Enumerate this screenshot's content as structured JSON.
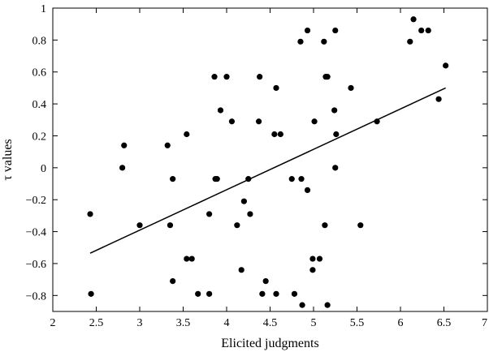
{
  "chart_data": {
    "type": "scatter",
    "xlabel": "Elicited judgments",
    "ylabel": "τ values",
    "xlim": [
      2,
      7
    ],
    "ylim": [
      -0.9,
      1
    ],
    "xticks": [
      2,
      2.5,
      3,
      3.5,
      4,
      4.5,
      5,
      5.5,
      6,
      6.5,
      7
    ],
    "xtick_labels": [
      "2",
      "2.5",
      "3",
      "3.5",
      "4",
      "4.5",
      "5",
      "5.5",
      "6",
      "6.5",
      "7"
    ],
    "yticks": [
      -0.8,
      -0.6,
      -0.4,
      -0.2,
      0,
      0.2,
      0.4,
      0.6,
      0.8,
      1
    ],
    "ytick_labels": [
      "−0.8",
      "−0.6",
      "−0.4",
      "−0.2",
      "0",
      "0.2",
      "0.4",
      "0.6",
      "0.8",
      "1"
    ],
    "grid": false,
    "legend": "none",
    "points": [
      {
        "x": 2.43,
        "y": -0.29
      },
      {
        "x": 2.44,
        "y": -0.79
      },
      {
        "x": 2.8,
        "y": 0.0
      },
      {
        "x": 2.82,
        "y": 0.14
      },
      {
        "x": 3.0,
        "y": -0.36
      },
      {
        "x": 3.32,
        "y": 0.14
      },
      {
        "x": 3.35,
        "y": -0.36
      },
      {
        "x": 3.38,
        "y": -0.07
      },
      {
        "x": 3.38,
        "y": -0.71
      },
      {
        "x": 3.54,
        "y": 0.21
      },
      {
        "x": 3.54,
        "y": -0.57
      },
      {
        "x": 3.6,
        "y": -0.57
      },
      {
        "x": 3.67,
        "y": -0.79
      },
      {
        "x": 3.8,
        "y": -0.29
      },
      {
        "x": 3.8,
        "y": -0.79
      },
      {
        "x": 3.86,
        "y": 0.57
      },
      {
        "x": 3.87,
        "y": -0.07
      },
      {
        "x": 3.89,
        "y": -0.07
      },
      {
        "x": 3.93,
        "y": 0.36
      },
      {
        "x": 4.0,
        "y": 0.57
      },
      {
        "x": 4.06,
        "y": 0.29
      },
      {
        "x": 4.12,
        "y": -0.36
      },
      {
        "x": 4.17,
        "y": -0.64
      },
      {
        "x": 4.2,
        "y": -0.21
      },
      {
        "x": 4.25,
        "y": -0.07
      },
      {
        "x": 4.27,
        "y": -0.29
      },
      {
        "x": 4.37,
        "y": 0.29
      },
      {
        "x": 4.38,
        "y": 0.57
      },
      {
        "x": 4.41,
        "y": -0.79
      },
      {
        "x": 4.45,
        "y": -0.71
      },
      {
        "x": 4.55,
        "y": 0.21
      },
      {
        "x": 4.57,
        "y": 0.5
      },
      {
        "x": 4.57,
        "y": -0.79
      },
      {
        "x": 4.62,
        "y": 0.21
      },
      {
        "x": 4.75,
        "y": -0.07
      },
      {
        "x": 4.78,
        "y": -0.79
      },
      {
        "x": 4.85,
        "y": 0.79
      },
      {
        "x": 4.86,
        "y": -0.07
      },
      {
        "x": 4.87,
        "y": -0.86
      },
      {
        "x": 4.93,
        "y": 0.86
      },
      {
        "x": 4.93,
        "y": -0.14
      },
      {
        "x": 4.99,
        "y": -0.57
      },
      {
        "x": 4.99,
        "y": -0.64
      },
      {
        "x": 5.01,
        "y": 0.29
      },
      {
        "x": 5.07,
        "y": -0.57
      },
      {
        "x": 5.12,
        "y": 0.79
      },
      {
        "x": 5.13,
        "y": -0.36
      },
      {
        "x": 5.14,
        "y": 0.57
      },
      {
        "x": 5.16,
        "y": 0.57
      },
      {
        "x": 5.16,
        "y": -0.86
      },
      {
        "x": 5.24,
        "y": 0.36
      },
      {
        "x": 5.25,
        "y": 0.86
      },
      {
        "x": 5.25,
        "y": 0.0
      },
      {
        "x": 5.26,
        "y": 0.21
      },
      {
        "x": 5.43,
        "y": 0.5
      },
      {
        "x": 5.54,
        "y": -0.36
      },
      {
        "x": 5.73,
        "y": 0.29
      },
      {
        "x": 6.11,
        "y": 0.79
      },
      {
        "x": 6.15,
        "y": 0.93
      },
      {
        "x": 6.24,
        "y": 0.86
      },
      {
        "x": 6.32,
        "y": 0.86
      },
      {
        "x": 6.44,
        "y": 0.43
      },
      {
        "x": 6.52,
        "y": 0.64
      }
    ],
    "fit_line": {
      "x": [
        2.43,
        6.52
      ],
      "y": [
        -0.535,
        0.5
      ]
    }
  }
}
